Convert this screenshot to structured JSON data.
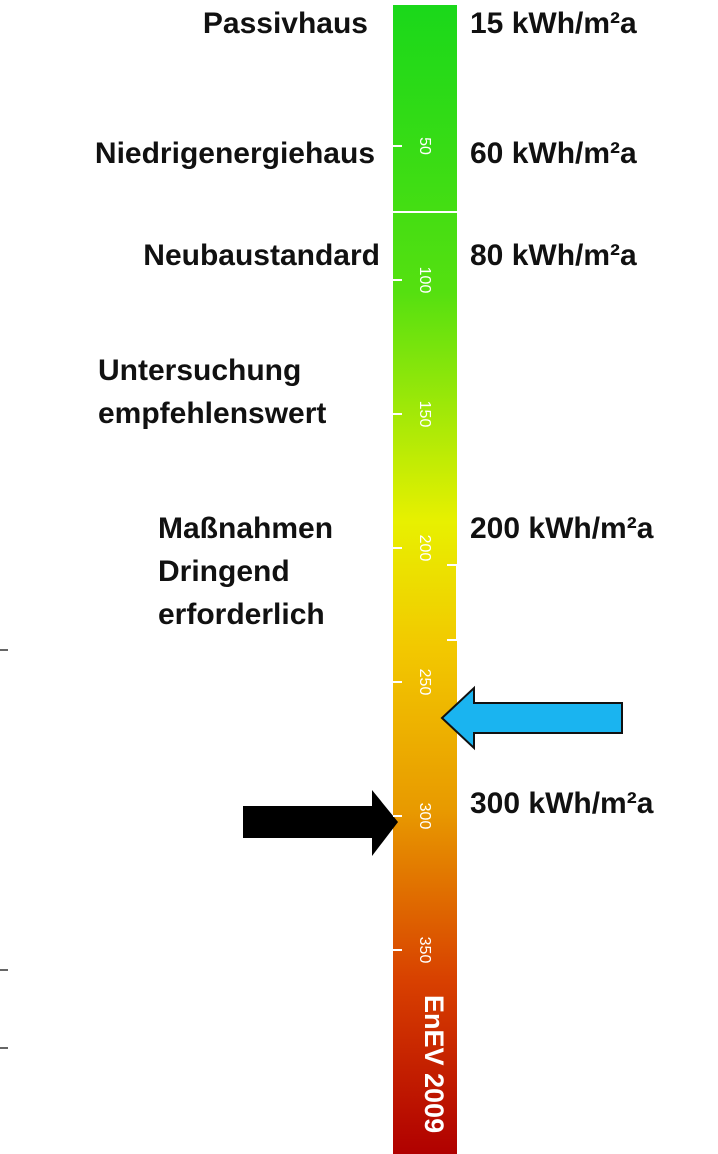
{
  "levels": [
    {
      "lines": [
        "Passivhaus"
      ],
      "value": "15 kWh/m²a"
    },
    {
      "lines": [
        "Niedrigenergiehaus"
      ],
      "value": "60 kWh/m²a"
    },
    {
      "lines": [
        "Neubaustandard"
      ],
      "value": "80 kWh/m²a"
    },
    {
      "lines": [
        "Untersuchung",
        "empfehlenswert"
      ]
    },
    {
      "lines": [
        "Maßnahmen",
        "Dringend",
        "erforderlich"
      ],
      "value": "200 kWh/m²a"
    },
    {
      "value": "300 kWh/m²a"
    }
  ],
  "scale": {
    "ticks": [
      50,
      100,
      150,
      200,
      250,
      300,
      350
    ],
    "footer": "EnEV 2009"
  }
}
